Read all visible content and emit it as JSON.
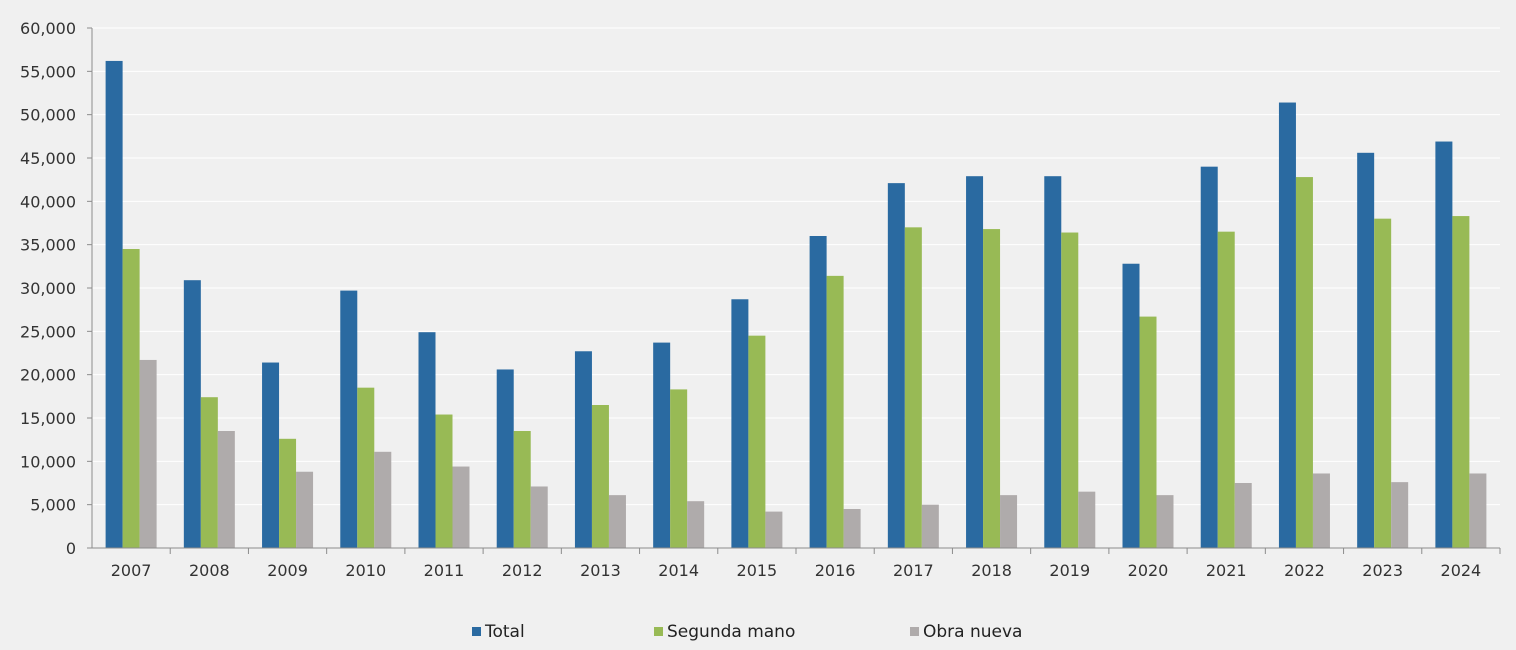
{
  "chart_data": {
    "type": "bar",
    "title": "",
    "xlabel": "",
    "ylabel": "",
    "ylim": [
      0,
      60000
    ],
    "yticks": [
      0,
      5000,
      10000,
      15000,
      20000,
      25000,
      30000,
      35000,
      40000,
      45000,
      50000,
      55000,
      60000
    ],
    "ytick_labels": [
      "0",
      "5,000",
      "10,000",
      "15,000",
      "20,000",
      "25,000",
      "30,000",
      "35,000",
      "40,000",
      "45,000",
      "50,000",
      "55,000",
      "60,000"
    ],
    "grid": true,
    "legend_position": "bottom",
    "categories": [
      "2007",
      "2008",
      "2009",
      "2010",
      "2011",
      "2012",
      "2013",
      "2014",
      "2015",
      "2016",
      "2017",
      "2018",
      "2019",
      "2020",
      "2021",
      "2022",
      "2023",
      "2024"
    ],
    "series": [
      {
        "name": "Total",
        "color": "#2a6aa1",
        "values": [
          56200,
          30900,
          21400,
          29700,
          24900,
          20600,
          22700,
          23700,
          28700,
          36000,
          42100,
          42900,
          42900,
          32800,
          44000,
          51400,
          45600,
          46900
        ]
      },
      {
        "name": "Segunda mano",
        "color": "#98ba55",
        "values": [
          34500,
          17400,
          12600,
          18500,
          15400,
          13500,
          16500,
          18300,
          24500,
          31400,
          37000,
          36800,
          36400,
          26700,
          36500,
          42800,
          38000,
          38300
        ]
      },
      {
        "name": "Obra nueva",
        "color": "#afabab",
        "values": [
          21700,
          13500,
          8800,
          11100,
          9400,
          7100,
          6100,
          5400,
          4200,
          4500,
          5000,
          6100,
          6500,
          6100,
          7500,
          8600,
          7600,
          8600
        ]
      }
    ]
  }
}
